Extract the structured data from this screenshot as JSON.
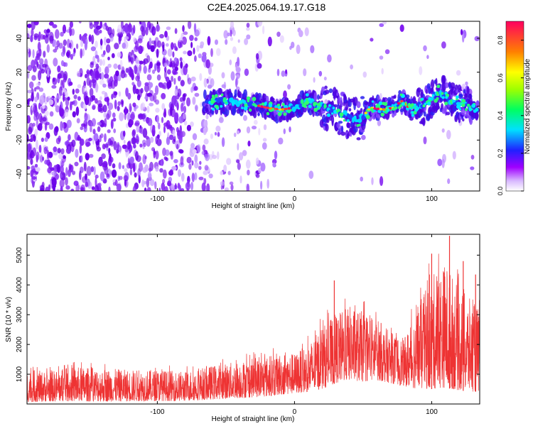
{
  "title": "C2E4.2025.064.19.17.G18",
  "chart_data": [
    {
      "type": "heatmap",
      "name": "spectrogram",
      "xlabel": "Height of straight line (km)",
      "ylabel": "Frequency (Hz)",
      "xlim": [
        -195,
        135
      ],
      "ylim": [
        -50,
        50
      ],
      "xticks": [
        -100,
        0,
        100
      ],
      "yticks": [
        -40,
        -20,
        0,
        20,
        40
      ],
      "colorbar": {
        "label": "Normalized spectral amplitude",
        "range": [
          0,
          0.9
        ],
        "ticks": [
          "0.0",
          "0.2",
          "0.4",
          "0.6",
          "0.8"
        ],
        "colormap": [
          "#ffffff",
          "#a000ff",
          "#2020ff",
          "#00e0ff",
          "#00ff60",
          "#a0ff00",
          "#ffff00",
          "#ff8000",
          "#ff0060"
        ]
      },
      "signal_trace": [
        {
          "x": -65,
          "f": 1
        },
        {
          "x": -55,
          "f": 3
        },
        {
          "x": -40,
          "f": 2
        },
        {
          "x": -30,
          "f": 1
        },
        {
          "x": -20,
          "f": -1
        },
        {
          "x": -10,
          "f": -2
        },
        {
          "x": 0,
          "f": -1
        },
        {
          "x": 10,
          "f": 3
        },
        {
          "x": 20,
          "f": 0
        },
        {
          "x": 30,
          "f": -3
        },
        {
          "x": 40,
          "f": -6
        },
        {
          "x": 48,
          "f": -8
        },
        {
          "x": 55,
          "f": -1
        },
        {
          "x": 65,
          "f": -2
        },
        {
          "x": 72,
          "f": -1
        },
        {
          "x": 78,
          "f": 3
        },
        {
          "x": 85,
          "f": -2
        },
        {
          "x": 95,
          "f": 1
        },
        {
          "x": 105,
          "f": 8
        },
        {
          "x": 115,
          "f": 3
        },
        {
          "x": 125,
          "f": 0
        },
        {
          "x": 133,
          "f": -2
        }
      ]
    },
    {
      "type": "line",
      "name": "snr",
      "xlabel": "Height of straight line (km)",
      "ylabel": "SNR (10 * v/v)",
      "xlim": [
        -195,
        135
      ],
      "ylim": [
        0,
        5700
      ],
      "xticks": [
        -100,
        0,
        100
      ],
      "yticks": [
        1000,
        2000,
        3000,
        4000,
        5000
      ],
      "color": "#ee3333",
      "envelope": [
        {
          "x": -195,
          "low": 60,
          "high": 1150
        },
        {
          "x": -180,
          "low": 80,
          "high": 1100
        },
        {
          "x": -160,
          "low": 90,
          "high": 1250
        },
        {
          "x": -140,
          "low": 80,
          "high": 1200
        },
        {
          "x": -120,
          "low": 90,
          "high": 1150
        },
        {
          "x": -100,
          "low": 100,
          "high": 1150
        },
        {
          "x": -80,
          "low": 100,
          "high": 1100
        },
        {
          "x": -60,
          "low": 150,
          "high": 1300
        },
        {
          "x": -40,
          "low": 200,
          "high": 1450
        },
        {
          "x": -20,
          "low": 250,
          "high": 1600
        },
        {
          "x": -10,
          "low": 300,
          "high": 1750
        },
        {
          "x": 0,
          "low": 350,
          "high": 1700
        },
        {
          "x": 10,
          "low": 400,
          "high": 2000
        },
        {
          "x": 20,
          "low": 500,
          "high": 2600
        },
        {
          "x": 30,
          "low": 700,
          "high": 3000
        },
        {
          "x": 40,
          "low": 800,
          "high": 3300
        },
        {
          "x": 50,
          "low": 750,
          "high": 3100
        },
        {
          "x": 60,
          "low": 800,
          "high": 2900
        },
        {
          "x": 70,
          "low": 700,
          "high": 2400
        },
        {
          "x": 80,
          "low": 600,
          "high": 2200
        },
        {
          "x": 90,
          "low": 500,
          "high": 3300
        },
        {
          "x": 100,
          "low": 500,
          "high": 4300
        },
        {
          "x": 110,
          "low": 550,
          "high": 4800
        },
        {
          "x": 120,
          "low": 450,
          "high": 3900
        },
        {
          "x": 135,
          "low": 400,
          "high": 3200
        }
      ],
      "peaks": [
        {
          "x": 29,
          "y": 4150
        },
        {
          "x": 100,
          "y": 5050
        },
        {
          "x": 113,
          "y": 5650
        },
        {
          "x": 123,
          "y": 4800
        },
        {
          "x": 132,
          "y": 4350
        }
      ]
    }
  ]
}
